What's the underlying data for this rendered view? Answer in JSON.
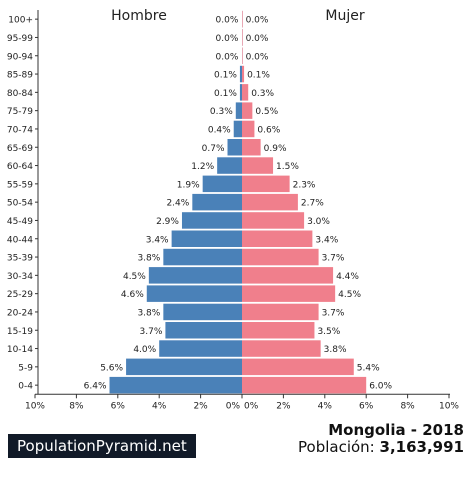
{
  "chart_data": {
    "type": "bar",
    "categories": [
      "100+",
      "95-99",
      "90-94",
      "85-89",
      "80-84",
      "75-79",
      "70-74",
      "65-69",
      "60-64",
      "55-59",
      "50-54",
      "45-49",
      "40-44",
      "35-39",
      "30-34",
      "25-29",
      "20-24",
      "15-19",
      "10-14",
      "5-9",
      "0-4"
    ],
    "series": [
      {
        "name": "Hombre",
        "values": [
          0.0,
          0.0,
          0.0,
          0.1,
          0.1,
          0.3,
          0.4,
          0.7,
          1.2,
          1.9,
          2.4,
          2.9,
          3.4,
          3.8,
          4.5,
          4.6,
          3.8,
          3.7,
          4.0,
          5.6,
          6.4
        ],
        "color": "#4a81b8"
      },
      {
        "name": "Mujer",
        "values": [
          0.0,
          0.0,
          0.0,
          0.1,
          0.3,
          0.5,
          0.6,
          0.9,
          1.5,
          2.3,
          2.7,
          3.0,
          3.4,
          3.7,
          4.4,
          4.5,
          3.7,
          3.5,
          3.8,
          5.4,
          6.0
        ],
        "color": "#f07f8c"
      }
    ],
    "value_labels_left": [
      "0.0%",
      "0.0%",
      "0.0%",
      "0.1%",
      "0.1%",
      "0.3%",
      "0.4%",
      "0.7%",
      "1.2%",
      "1.9%",
      "2.4%",
      "2.9%",
      "3.4%",
      "3.8%",
      "4.5%",
      "4.6%",
      "3.8%",
      "3.7%",
      "4.0%",
      "5.6%",
      "6.4%"
    ],
    "value_labels_right": [
      "0.0%",
      "0.0%",
      "0.0%",
      "0.1%",
      "0.3%",
      "0.5%",
      "0.6%",
      "0.9%",
      "1.5%",
      "2.3%",
      "2.7%",
      "3.0%",
      "3.4%",
      "3.7%",
      "4.4%",
      "4.5%",
      "3.7%",
      "3.5%",
      "3.8%",
      "5.4%",
      "6.0%"
    ],
    "x_ticks_left": [
      "10%",
      "8%",
      "6%",
      "4%",
      "2%",
      "0%"
    ],
    "x_ticks_right": [
      "0%",
      "2%",
      "4%",
      "6%",
      "8%",
      "10%"
    ],
    "xlim": [
      0,
      10
    ],
    "grid": false
  },
  "brand": "PopulationPyramid.net",
  "country_year": "Mongolia - 2018",
  "population_label": "Población:",
  "population_value": "3,163,991"
}
